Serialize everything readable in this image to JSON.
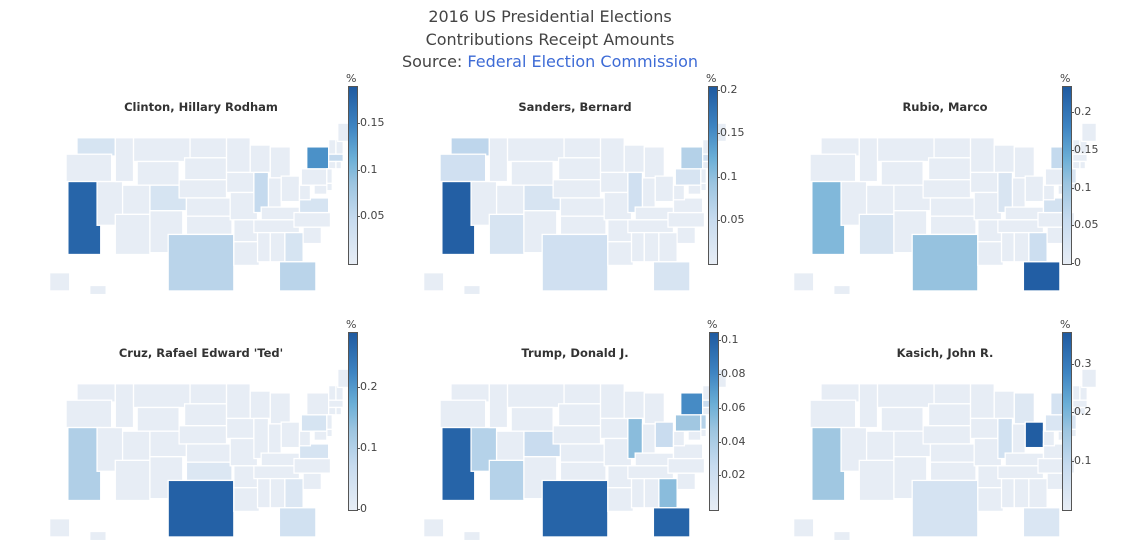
{
  "header": {
    "line1": "2016 US Presidential Elections",
    "line2": "Contributions Receipt Amounts",
    "source_prefix": "Source: ",
    "source_link": "Federal Election Commission"
  },
  "colors": {
    "scale": [
      "#e7edf5",
      "#c7dbef",
      "#9dc5e0",
      "#6aaed6",
      "#3d83c1",
      "#1f5aa0"
    ],
    "border": "#ffffff",
    "link": "#3d6bd6"
  },
  "panels": [
    {
      "title": "Clinton, Hillary Rodham",
      "unit": "%",
      "ticks": [
        {
          "v": 0.15,
          "label": "0.15"
        },
        {
          "v": 0.1,
          "label": "0.1"
        },
        {
          "v": 0.05,
          "label": "0.05"
        }
      ],
      "max": 0.19,
      "highlights": {
        "CA": 0.18,
        "NY": 0.14,
        "TX": 0.05,
        "FL": 0.05,
        "IL": 0.04,
        "MA": 0.04,
        "WA": 0.02,
        "CO": 0.02,
        "GA": 0.02,
        "VA": 0.02
      }
    },
    {
      "title": "Sanders, Bernard",
      "unit": "%",
      "ticks": [
        {
          "v": 0.2,
          "label": "0.2"
        },
        {
          "v": 0.15,
          "label": "0.15"
        },
        {
          "v": 0.1,
          "label": "0.1"
        },
        {
          "v": 0.05,
          "label": "0.05"
        }
      ],
      "max": 0.205,
      "highlights": {
        "CA": 0.2,
        "NY": 0.06,
        "WA": 0.05,
        "OR": 0.03,
        "TX": 0.03,
        "IL": 0.03,
        "MA": 0.03,
        "CO": 0.02,
        "FL": 0.02,
        "AZ": 0.02,
        "PA": 0.02
      }
    },
    {
      "title": "Rubio, Marco",
      "unit": "%",
      "ticks": [
        {
          "v": 0.2,
          "label": "0.2"
        },
        {
          "v": 0.15,
          "label": "0.15"
        },
        {
          "v": 0.1,
          "label": "0.1"
        },
        {
          "v": 0.05,
          "label": "0.05"
        },
        {
          "v": 0,
          "label": "0"
        }
      ],
      "max": 0.235,
      "highlights": {
        "FL": 0.23,
        "CA": 0.12,
        "TX": 0.1,
        "NY": 0.05,
        "GA": 0.04,
        "IL": 0.02,
        "VA": 0.03,
        "NJ": 0.02,
        "AZ": 0.02
      }
    },
    {
      "title": "Cruz, Rafael Edward 'Ted'",
      "unit": "%",
      "ticks": [
        {
          "v": 0.2,
          "label": "0.2"
        },
        {
          "v": 0.1,
          "label": "0.1"
        },
        {
          "v": 0,
          "label": "0"
        }
      ],
      "max": 0.29,
      "highlights": {
        "TX": 0.28,
        "CA": 0.09,
        "FL": 0.04,
        "PA": 0.03,
        "VA": 0.03,
        "OK": 0.02,
        "GA": 0.02
      }
    },
    {
      "title": "Trump, Donald J.",
      "unit": "%",
      "ticks": [
        {
          "v": 0.1,
          "label": "0.1"
        },
        {
          "v": 0.08,
          "label": "0.08"
        },
        {
          "v": 0.06,
          "label": "0.06"
        },
        {
          "v": 0.04,
          "label": "0.04"
        },
        {
          "v": 0.02,
          "label": "0.02"
        }
      ],
      "max": 0.105,
      "highlights": {
        "CA": 0.1,
        "TX": 0.1,
        "FL": 0.1,
        "NY": 0.08,
        "GA": 0.05,
        "IL": 0.05,
        "PA": 0.04,
        "NV": 0.03,
        "AZ": 0.03,
        "CO": 0.02,
        "OH": 0.02,
        "NJ": 0.03,
        "MA": 0.02
      }
    },
    {
      "title": "Kasich, John R.",
      "unit": "%",
      "ticks": [
        {
          "v": 0.3,
          "label": "0.3"
        },
        {
          "v": 0.2,
          "label": "0.2"
        },
        {
          "v": 0.1,
          "label": "0.1"
        }
      ],
      "max": 0.365,
      "highlights": {
        "OH": 0.36,
        "CA": 0.14,
        "IL": 0.05,
        "TX": 0.04,
        "NY": 0.04,
        "PA": 0.03,
        "FL": 0.03,
        "NJ": 0.03,
        "MI": 0.02
      }
    }
  ]
}
